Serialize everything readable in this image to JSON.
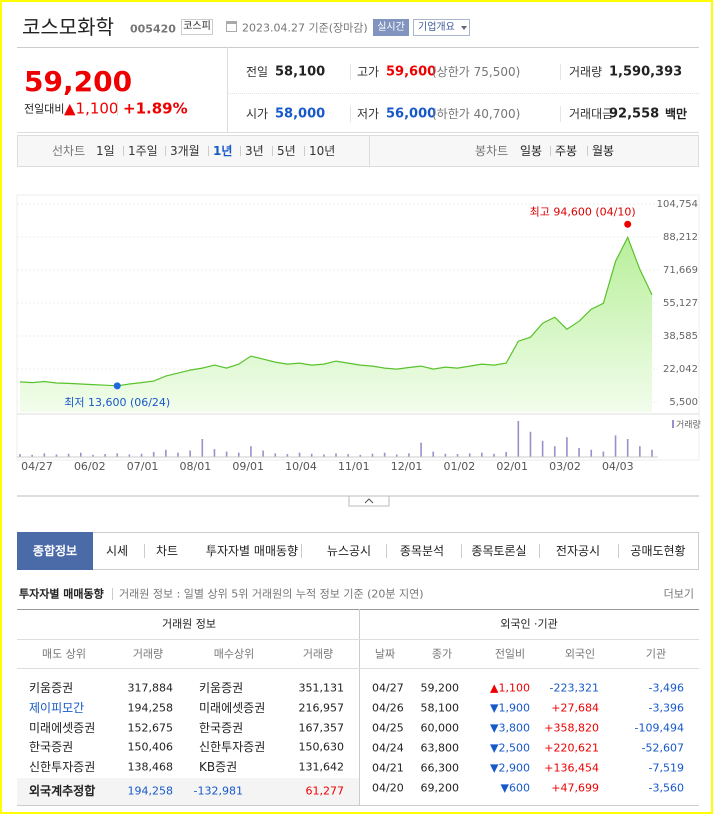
{
  "header": {
    "name": "코스모화학",
    "code": "005420",
    "market": "코스피",
    "date": "2023.04.27 기준(장마감)",
    "realtime": "실시간",
    "overview": "기업개요"
  },
  "quote": {
    "price": "59,200",
    "change_label": "전일대비",
    "change": "▲1,100",
    "rate": "+1.89%"
  },
  "stats": [
    [
      {
        "label": "전일",
        "value": "58,100"
      },
      {
        "label": "고가",
        "value": "59,600",
        "note": "(상한가 75,500)"
      },
      {
        "label": "거래량",
        "value": "1,590,393"
      }
    ],
    [
      {
        "label": "시가",
        "value": "58,000"
      },
      {
        "label": "저가",
        "value": "56,000",
        "note": "(하한가 40,700)"
      },
      {
        "label": "거래대금",
        "value": "92,558",
        "unit": "백만"
      }
    ]
  ],
  "period": {
    "line_label": "선차트",
    "line_options": [
      "1일",
      "1주일",
      "3개월",
      "1년",
      "3년",
      "5년",
      "10년"
    ],
    "selected": 3,
    "candle_label": "봉차트",
    "candle_options": [
      "일봉",
      "주봉",
      "월봉"
    ]
  },
  "chart": {
    "ylim": [
      5500,
      104754
    ],
    "yticks": [
      {
        "value": 104754,
        "label": "104,754"
      },
      {
        "value": 88212,
        "label": "88,212"
      },
      {
        "value": 71669,
        "label": "71,669"
      },
      {
        "value": 55127,
        "label": "55,127"
      },
      {
        "value": 38585,
        "label": "38,585"
      },
      {
        "value": 22042,
        "label": "22,042"
      },
      {
        "value": 5500,
        "label": "5,500"
      }
    ],
    "x_labels": [
      "04/27",
      "06/02",
      "07/01",
      "08/01",
      "09/01",
      "10/04",
      "11/01",
      "12/01",
      "01/02",
      "02/01",
      "03/02",
      "04/03"
    ],
    "price": [
      15600,
      15200,
      15800,
      15000,
      14800,
      14500,
      14200,
      13900,
      13600,
      14500,
      15200,
      16000,
      18500,
      20000,
      21500,
      22500,
      24000,
      22500,
      24500,
      28500,
      27000,
      25500,
      24500,
      25000,
      24000,
      24500,
      26000,
      25000,
      24000,
      23500,
      22500,
      22000,
      22800,
      23500,
      22000,
      23000,
      22500,
      23500,
      24500,
      24000,
      25000,
      36000,
      38000,
      45000,
      48000,
      42000,
      46000,
      52000,
      55000,
      76000,
      88000,
      72000,
      59200
    ],
    "volume": [
      8,
      6,
      10,
      7,
      9,
      12,
      6,
      8,
      10,
      7,
      9,
      14,
      20,
      12,
      18,
      50,
      22,
      15,
      12,
      30,
      18,
      10,
      8,
      12,
      9,
      7,
      10,
      8,
      6,
      9,
      12,
      7,
      10,
      40,
      15,
      9,
      8,
      10,
      12,
      9,
      14,
      100,
      70,
      45,
      30,
      55,
      25,
      20,
      15,
      60,
      50,
      30,
      20
    ],
    "high": {
      "label": "최고 94,600 (04/10)",
      "value": 94600
    },
    "low": {
      "label": "최저 13,600 (06/24)",
      "value": 13600
    },
    "volume_label": "거래량"
  },
  "tabs": [
    "종합정보",
    "시세",
    "차트",
    "투자자별 매매동향",
    "뉴스공시",
    "종목분석",
    "종목토론실",
    "전자공시",
    "공매도현황"
  ],
  "section": {
    "title": "투자자별 매매동향",
    "desc": "거래원 정보 : 일별 상위 5위 거래원의 누적 정보 기준 (20분 지연)",
    "more": "더보기"
  },
  "broker": {
    "title": "거래원 정보",
    "columns": [
      "매도 상위",
      "거래량",
      "매수상위",
      "거래량"
    ],
    "rows": [
      [
        "키움증권",
        "317,884",
        "키움증권",
        "351,131"
      ],
      [
        "제이피모간",
        "194,258",
        "미래에셋증권",
        "216,957"
      ],
      [
        "미래에셋증권",
        "152,675",
        "한국증권",
        "167,357"
      ],
      [
        "한국증권",
        "150,406",
        "신한투자증권",
        "150,630"
      ],
      [
        "신한투자증권",
        "138,468",
        "KB증권",
        "131,642"
      ]
    ],
    "total": [
      "외국계추정합",
      "194,258",
      "-132,981",
      "61,277"
    ]
  },
  "investor": {
    "title": "외국인 ·기관",
    "columns": [
      "날짜",
      "종가",
      "전일비",
      "외국인",
      "기관"
    ],
    "rows": [
      [
        "04/27",
        "59,200",
        "▲1,100",
        "-223,321",
        "-3,496"
      ],
      [
        "04/26",
        "58,100",
        "▼1,900",
        "+27,684",
        "-3,396"
      ],
      [
        "04/25",
        "60,000",
        "▼3,800",
        "+358,820",
        "-109,494"
      ],
      [
        "04/24",
        "63,800",
        "▼2,500",
        "+220,621",
        "-52,607"
      ],
      [
        "04/21",
        "66,300",
        "▼2,900",
        "+136,454",
        "-7,519"
      ],
      [
        "04/20",
        "69,200",
        "▼600",
        "+47,699",
        "-3,560"
      ]
    ]
  }
}
